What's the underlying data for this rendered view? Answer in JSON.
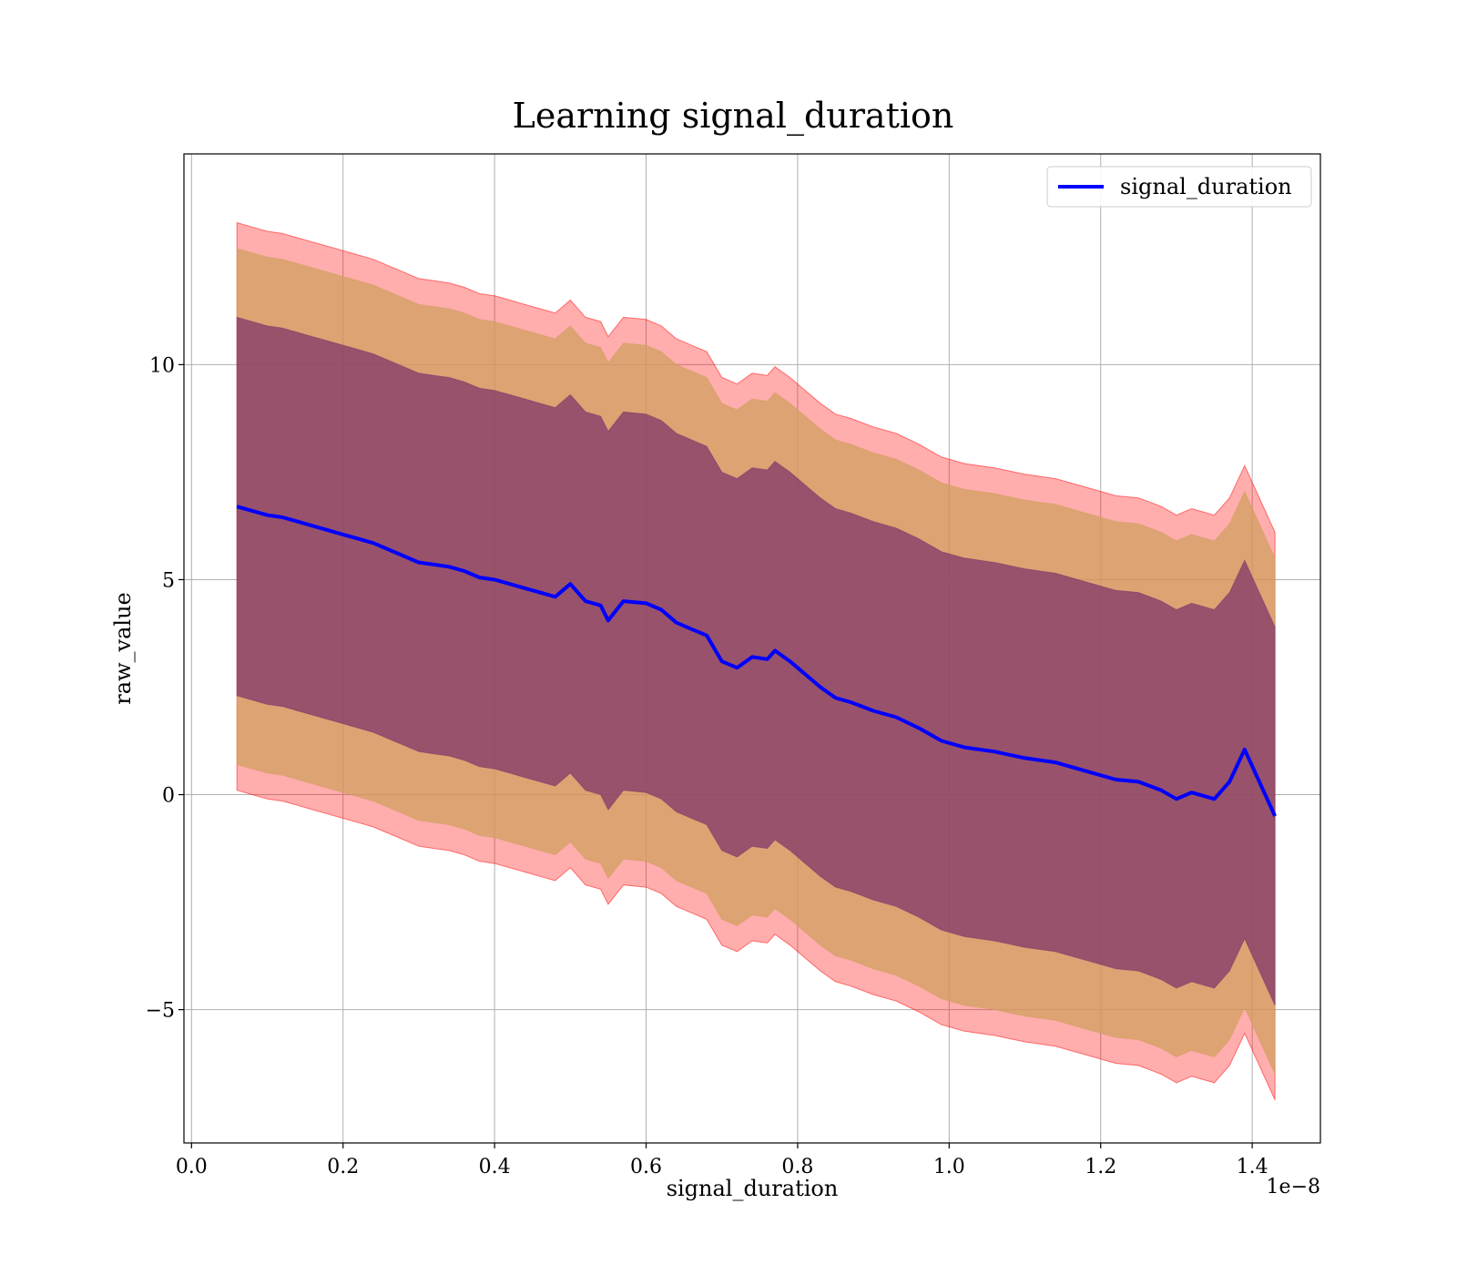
{
  "chart_data": {
    "type": "line",
    "title": "Learning signal_duration",
    "xlabel": "signal_duration",
    "ylabel": "raw_value",
    "x_offset_label": "1e−8",
    "xlim": [
      -0.01,
      1.49
    ],
    "ylim": [
      -8.1,
      14.9
    ],
    "x_ticks": [
      0.0,
      0.2,
      0.4,
      0.6,
      0.8,
      1.0,
      1.2,
      1.4
    ],
    "x_tick_labels": [
      "0.0",
      "0.2",
      "0.4",
      "0.6",
      "0.8",
      "1.0",
      "1.2",
      "1.4"
    ],
    "y_ticks": [
      -5,
      0,
      5,
      10
    ],
    "y_tick_labels": [
      "−5",
      "0",
      "5",
      "10"
    ],
    "grid": true,
    "legend": {
      "position": "top-right",
      "entries": [
        "signal_duration"
      ]
    },
    "colors": {
      "line": "#0000ff",
      "band_outer": "#ff0000",
      "band_middle": "#d2a060",
      "band_inner": "#7a2f6a"
    },
    "x": [
      0.06,
      0.08,
      0.1,
      0.12,
      0.14,
      0.16,
      0.18,
      0.2,
      0.22,
      0.24,
      0.26,
      0.28,
      0.3,
      0.32,
      0.34,
      0.36,
      0.38,
      0.4,
      0.42,
      0.44,
      0.46,
      0.48,
      0.5,
      0.52,
      0.54,
      0.55,
      0.57,
      0.6,
      0.62,
      0.64,
      0.66,
      0.68,
      0.7,
      0.72,
      0.74,
      0.76,
      0.77,
      0.79,
      0.81,
      0.83,
      0.85,
      0.87,
      0.9,
      0.93,
      0.96,
      0.99,
      1.02,
      1.06,
      1.1,
      1.14,
      1.18,
      1.22,
      1.25,
      1.28,
      1.3,
      1.32,
      1.35,
      1.37,
      1.39,
      1.43
    ],
    "series": [
      {
        "name": "signal_duration",
        "values": [
          6.7,
          6.6,
          6.5,
          6.45,
          6.35,
          6.25,
          6.15,
          6.05,
          5.95,
          5.85,
          5.7,
          5.55,
          5.4,
          5.35,
          5.3,
          5.2,
          5.05,
          5.0,
          4.9,
          4.8,
          4.7,
          4.6,
          4.9,
          4.5,
          4.4,
          4.05,
          4.5,
          4.45,
          4.3,
          4.0,
          3.85,
          3.7,
          3.1,
          2.95,
          3.2,
          3.15,
          3.35,
          3.1,
          2.8,
          2.5,
          2.25,
          2.15,
          1.95,
          1.8,
          1.55,
          1.25,
          1.1,
          1.0,
          0.85,
          0.75,
          0.55,
          0.35,
          0.3,
          0.1,
          -0.1,
          0.05,
          -0.1,
          0.3,
          1.05,
          -0.5
        ]
      }
    ],
    "bands": {
      "outer_offset": 6.6,
      "middle_offset": 6.0,
      "inner_offset": 4.4
    }
  },
  "legend": {
    "label": "signal_duration"
  }
}
